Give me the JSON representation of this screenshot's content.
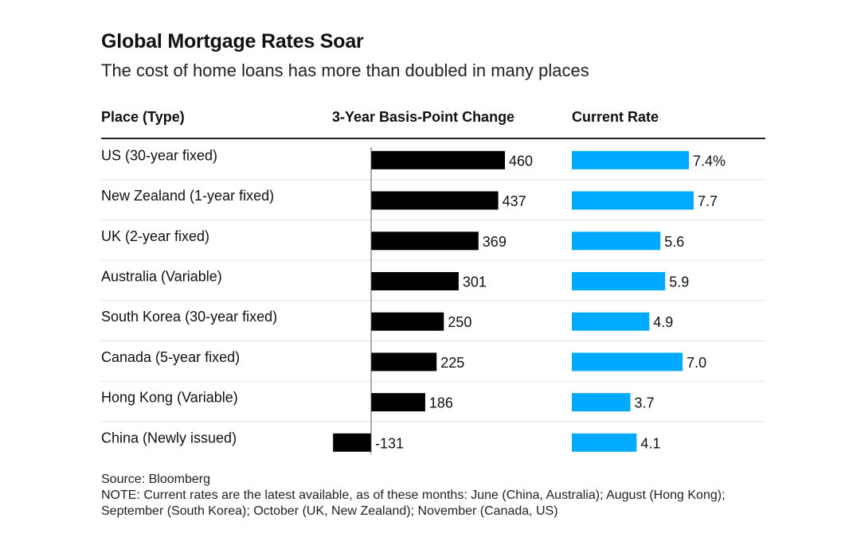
{
  "title": "Global Mortgage Rates Soar",
  "subtitle": "The cost of home loans has more than doubled in many places",
  "columns": {
    "place": "Place (Type)",
    "change": "3-Year Basis-Point Change",
    "rate": "Current Rate"
  },
  "colors": {
    "change_bar": "#000000",
    "rate_bar": "#00aaff",
    "row_divider": "#e4e4e4",
    "text": "#111111"
  },
  "chart_data": {
    "type": "table",
    "title": "Global Mortgage Rates Soar",
    "subtitle": "The cost of home loans has more than doubled in many places",
    "categories": [
      "US (30-year fixed)",
      "New Zealand (1-year fixed)",
      "UK (2-year fixed)",
      "Australia (Variable)",
      "South Korea (30-year fixed)",
      "Canada (5-year fixed)",
      "Hong Kong (Variable)",
      "China (Newly issued)"
    ],
    "series": [
      {
        "name": "3-Year Basis-Point Change",
        "values": [
          460,
          437,
          369,
          301,
          250,
          225,
          186,
          -131
        ],
        "labels": [
          "460",
          "437",
          "369",
          "301",
          "250",
          "225",
          "186",
          "-131"
        ]
      },
      {
        "name": "Current Rate",
        "unit": "%",
        "values": [
          7.4,
          7.7,
          5.6,
          5.9,
          4.9,
          7.0,
          3.7,
          4.1
        ],
        "labels": [
          "7.4%",
          "7.7",
          "5.6",
          "5.9",
          "4.9",
          "7.0",
          "3.7",
          "4.1"
        ]
      }
    ]
  },
  "footnote": {
    "source": "Source: Bloomberg",
    "note": "NOTE: Current rates are the latest available, as of these months: June (China, Australia); August (Hong Kong); September (South Korea); October (UK, New Zealand); November (Canada, US)"
  }
}
